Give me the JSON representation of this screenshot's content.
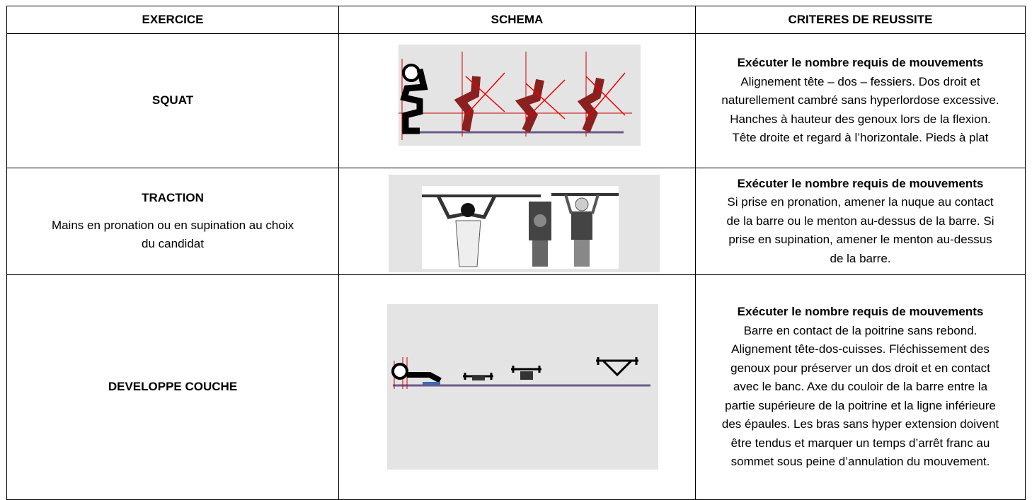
{
  "table": {
    "headers": [
      "EXERCICE",
      "SCHEMA",
      "CRITERES DE REUSSITE"
    ],
    "rows": [
      {
        "exercise": "SQUAT",
        "criteria": {
          "heading": "Exécuter le nombre requis de mouvements",
          "lines": [
            "Alignement tête – dos – fessiers. Dos droit et",
            "naturellement cambré sans hyperlordose excessive.",
            "Hanches à hauteur des genoux lors de la flexion.",
            "Tête droite et regard à l’horizontale. Pieds à plat"
          ]
        }
      },
      {
        "exercise": "TRACTION",
        "note_lines": [
          "Mains en pronation ou en supination au choix",
          "du candidat"
        ],
        "criteria": {
          "heading": "Exécuter le nombre requis de mouvements",
          "lines": [
            "Si prise en pronation, amener la nuque au contact",
            "de la barre ou le menton au-dessus de la barre. Si",
            "prise en supination, amener le menton au-dessus",
            "de la barre."
          ]
        }
      },
      {
        "exercise": "DEVELOPPE COUCHE",
        "criteria": {
          "heading": "Exécuter le nombre requis de mouvements",
          "lines": [
            "Barre en contact de la poitrine sans rebond.",
            "Alignement tête-dos-cuisses. Fléchissement des",
            "genoux pour préserver un dos droit et en contact",
            "avec le banc. Axe du couloir de la barre entre la",
            "partie supérieure de la poitrine et la ligne inférieure",
            "des épaules. Les bras sans hyper extension doivent",
            "être tendus et marquer un temps d’arrêt franc au",
            "sommet sous peine d’annulation du mouvement."
          ]
        }
      }
    ]
  }
}
